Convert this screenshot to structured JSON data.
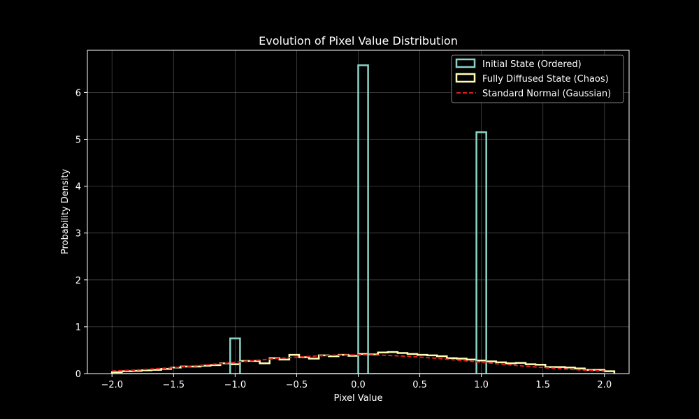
{
  "chart_data": {
    "type": "histogram",
    "title": "Evolution of Pixel Value Distribution",
    "xlabel": "Pixel Value",
    "ylabel": "Probability Density",
    "xlim": [
      -2.2,
      2.2
    ],
    "ylim": [
      0,
      6.9
    ],
    "xticks": [
      -2.0,
      -1.5,
      -1.0,
      -0.5,
      0.0,
      0.5,
      1.0,
      1.5,
      2.0
    ],
    "xtick_labels": [
      "−2.0",
      "−1.5",
      "−1.0",
      "−0.5",
      "0.0",
      "0.5",
      "1.0",
      "1.5",
      "2.0"
    ],
    "yticks": [
      0,
      1,
      2,
      3,
      4,
      5,
      6
    ],
    "ytick_labels": [
      "0",
      "1",
      "2",
      "3",
      "4",
      "5",
      "6"
    ],
    "grid": true,
    "legend_position": "top-right",
    "series": [
      {
        "name": "Initial State (Ordered)",
        "kind": "step-histogram",
        "color": "#8dd3c7",
        "bins": [
          {
            "x0": -1.04,
            "x1": -0.96,
            "density": 0.75
          },
          {
            "x0": 0.0,
            "x1": 0.08,
            "density": 6.58
          },
          {
            "x0": 0.96,
            "x1": 1.04,
            "density": 5.15
          }
        ]
      },
      {
        "name": "Fully Diffused State (Chaos)",
        "kind": "step-histogram",
        "color": "#ffffb3",
        "bin_edges_start": -2.0,
        "bin_width": 0.08,
        "densities": [
          0.03,
          0.05,
          0.06,
          0.07,
          0.08,
          0.1,
          0.13,
          0.15,
          0.15,
          0.17,
          0.18,
          0.22,
          0.2,
          0.27,
          0.27,
          0.22,
          0.33,
          0.3,
          0.4,
          0.35,
          0.32,
          0.39,
          0.37,
          0.4,
          0.38,
          0.42,
          0.41,
          0.45,
          0.46,
          0.44,
          0.42,
          0.4,
          0.39,
          0.37,
          0.33,
          0.32,
          0.3,
          0.28,
          0.26,
          0.24,
          0.22,
          0.23,
          0.2,
          0.19,
          0.14,
          0.14,
          0.13,
          0.11,
          0.08,
          0.08,
          0.05
        ]
      },
      {
        "name": "Standard Normal (Gaussian)",
        "kind": "line",
        "color": "#e41a1c",
        "dashed": true,
        "x_range": [
          -2.0,
          2.0
        ],
        "function": "standard_normal_pdf"
      }
    ]
  }
}
